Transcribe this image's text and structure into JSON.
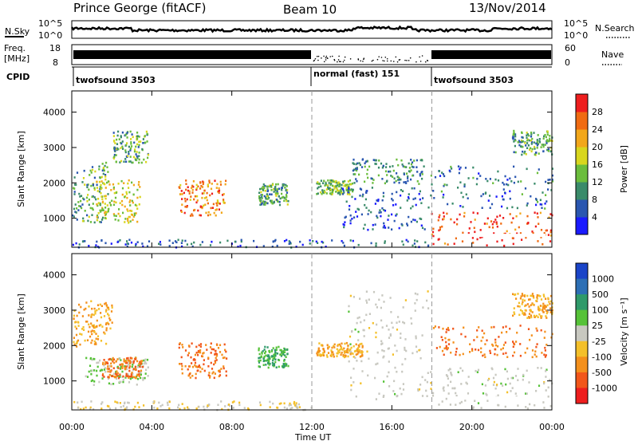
{
  "header": {
    "station": "Prince George (fitACF)",
    "beam": "Beam 10",
    "date": "13/Nov/2014"
  },
  "noise_panel": {
    "left_label": "N.Sky",
    "right_label": "N.Search",
    "left_ticks": [
      "10^5",
      "10^0"
    ],
    "right_ticks": [
      "10^5",
      "10^0"
    ]
  },
  "freq_panel": {
    "left_label_line1": "Freq.",
    "left_label_line2": "[MHz]",
    "left_ticks": [
      "18",
      "8"
    ],
    "right_label": "Nave",
    "right_ticks": [
      "60",
      "0"
    ]
  },
  "cpid_panel": {
    "label": "CPID",
    "segments": [
      {
        "start_hour": 0,
        "name": "twofsound 3503"
      },
      {
        "start_hour": 12,
        "name": "normal (fast) 151"
      },
      {
        "start_hour": 18,
        "name": "twofsound 3503"
      }
    ]
  },
  "time_axis": {
    "label": "Time UT",
    "ticks": [
      "00:00",
      "04:00",
      "08:00",
      "12:00",
      "16:00",
      "20:00",
      "00:00"
    ],
    "tick_hours": [
      0,
      4,
      8,
      12,
      16,
      20,
      24
    ],
    "range_hours": [
      0,
      24
    ]
  },
  "range_axis": {
    "label": "Slant Range [km]",
    "ticks": [
      "1000",
      "2000",
      "3000",
      "4000"
    ],
    "tick_values": [
      1000,
      2000,
      3000,
      4000
    ],
    "range_km": [
      180,
      4600
    ]
  },
  "power_colorbar": {
    "label": "Power [dB]",
    "ticks": [
      "4",
      "8",
      "12",
      "16",
      "20",
      "24",
      "28"
    ],
    "colors": [
      "#1a1aff",
      "#2a56b0",
      "#3a8b6a",
      "#6bbd3c",
      "#d8d61e",
      "#f2a71b",
      "#f06b12",
      "#ee1e1e"
    ]
  },
  "velocity_colorbar": {
    "label": "Velocity [m s⁻¹]",
    "ticks": [
      "1000",
      "500",
      "100",
      "25",
      "-25",
      "-100",
      "-500",
      "-1000"
    ],
    "colors": [
      "#1a44c8",
      "#2d6fb5",
      "#2f9a6a",
      "#56c238",
      "#c8c8c0",
      "#f4c02a",
      "#f4901c",
      "#f2561a",
      "#ee1e1e"
    ]
  },
  "chart_data": {
    "type": "heatmap",
    "x_unit": "hours UT",
    "y_unit": "km",
    "xlim": [
      0,
      24
    ],
    "ylim": [
      180,
      4600
    ],
    "mode_change_hours": [
      12,
      18
    ],
    "power_clusters": [
      {
        "x": [
          0.0,
          1.8
        ],
        "y": [
          900,
          2600
        ],
        "value": 12
      },
      {
        "x": [
          2.0,
          3.8
        ],
        "y": [
          2600,
          3500
        ],
        "value": 12
      },
      {
        "x": [
          1.2,
          3.4
        ],
        "y": [
          900,
          2100
        ],
        "value": 18
      },
      {
        "x": [
          5.3,
          7.7
        ],
        "y": [
          1100,
          2100
        ],
        "value": 24
      },
      {
        "x": [
          9.3,
          10.8
        ],
        "y": [
          1400,
          2000
        ],
        "value": 12
      },
      {
        "x": [
          12.2,
          14.0
        ],
        "y": [
          1700,
          2100
        ],
        "value": 14
      },
      {
        "x": [
          14.0,
          17.6
        ],
        "y": [
          2000,
          2700
        ],
        "value": 10
      },
      {
        "x": [
          13.5,
          17.8
        ],
        "y": [
          700,
          1900
        ],
        "value": 6
      },
      {
        "x": [
          17.9,
          24.0
        ],
        "y": [
          250,
          1200
        ],
        "value": 28
      },
      {
        "x": [
          17.9,
          24.0
        ],
        "y": [
          1300,
          2500
        ],
        "value": 8
      },
      {
        "x": [
          22.0,
          24.0
        ],
        "y": [
          2800,
          3500
        ],
        "value": 12
      },
      {
        "x": [
          0.0,
          17.9
        ],
        "y": [
          200,
          420
        ],
        "value": 6
      }
    ],
    "velocity_clusters": [
      {
        "x": [
          0.0,
          2.0
        ],
        "y": [
          2000,
          3300
        ],
        "value": -100
      },
      {
        "x": [
          0.5,
          3.8
        ],
        "y": [
          900,
          1700
        ],
        "value": 25
      },
      {
        "x": [
          1.5,
          3.5
        ],
        "y": [
          1100,
          1700
        ],
        "value": -500
      },
      {
        "x": [
          5.3,
          7.7
        ],
        "y": [
          1100,
          2100
        ],
        "value": -500
      },
      {
        "x": [
          9.3,
          10.8
        ],
        "y": [
          1400,
          2000
        ],
        "value": 100
      },
      {
        "x": [
          12.2,
          14.5
        ],
        "y": [
          1700,
          2100
        ],
        "value": -100
      },
      {
        "x": [
          13.8,
          17.8
        ],
        "y": [
          500,
          3600
        ],
        "value": 0
      },
      {
        "x": [
          17.9,
          24.0
        ],
        "y": [
          250,
          1400
        ],
        "value": 0
      },
      {
        "x": [
          18.0,
          24.0
        ],
        "y": [
          1700,
          2600
        ],
        "value": -500
      },
      {
        "x": [
          22.0,
          24.0
        ],
        "y": [
          2800,
          3500
        ],
        "value": -100
      },
      {
        "x": [
          0.0,
          12.0
        ],
        "y": [
          200,
          450
        ],
        "value": -25
      }
    ]
  }
}
